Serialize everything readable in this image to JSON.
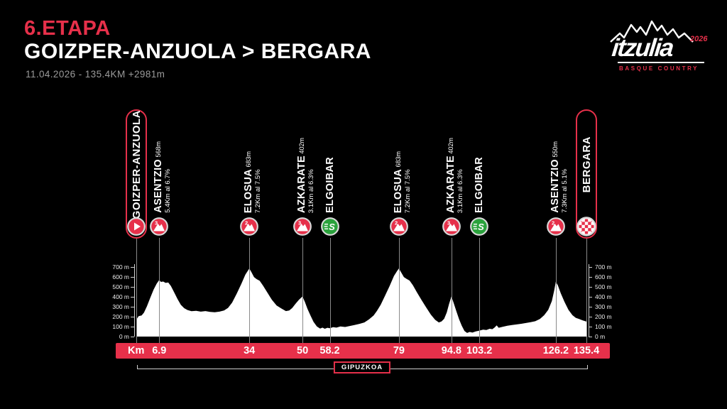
{
  "header": {
    "stage": "6.ETAPA",
    "route": "GOIZPER-ANZUOLA > BERGARA",
    "meta": "11.04.2026 - 135.4KM  +2981m"
  },
  "logo": {
    "wordmark": "itzulia",
    "year": "2026",
    "subtitle": "BASQUE COUNTRY"
  },
  "region_label": "GIPUZKOA",
  "colors": {
    "red": "#e6304a",
    "green": "#2aa23c",
    "white": "#ffffff",
    "bg": "#000000",
    "gray_text": "#9b9b9b",
    "grid": "#8a8a8a",
    "ring": "#d8d8d8"
  },
  "km_axis": {
    "label": "Km",
    "ticks": [
      "6.9",
      "34",
      "50",
      "58.2",
      "79",
      "94.8",
      "103.2",
      "126.2",
      "135.4"
    ]
  },
  "elevation_axis": {
    "ticks": [
      {
        "m": 700,
        "label": "700 m"
      },
      {
        "m": 600,
        "label": "600 m"
      },
      {
        "m": 500,
        "label": "500 m"
      },
      {
        "m": 400,
        "label": "400 m"
      },
      {
        "m": 300,
        "label": "300 m"
      },
      {
        "m": 200,
        "label": "200 m"
      },
      {
        "m": 100,
        "label": "100 m"
      },
      {
        "m": 0,
        "label": "0 m"
      }
    ]
  },
  "waypoints": [
    {
      "type": "start",
      "name": "GOIZPER-ANZUOLA",
      "km": 0
    },
    {
      "type": "climb",
      "cat": "3",
      "name": "ASENTZIO",
      "alt": "568m",
      "detail": "5.4Km al 6.7%",
      "km": 6.9
    },
    {
      "type": "climb",
      "cat": "2",
      "name": "ELOSUA",
      "alt": "683m",
      "detail": "7.2Km al 7.5%",
      "km": 34
    },
    {
      "type": "climb",
      "cat": "3",
      "name": "AZKARATE",
      "alt": "402m",
      "detail": "3.1Km al 6.3%",
      "km": 50
    },
    {
      "type": "sprint",
      "name": "ELGOIBAR",
      "km": 58.2
    },
    {
      "type": "climb",
      "cat": "2",
      "name": "ELOSUA",
      "alt": "683m",
      "detail": "7.2Km al 7.5%",
      "km": 79
    },
    {
      "type": "climb",
      "cat": "3",
      "name": "AZKARATE",
      "alt": "402m",
      "detail": "3.1Km al 6.3%",
      "km": 94.8
    },
    {
      "type": "sprint",
      "name": "ELGOIBAR",
      "km": 103.2
    },
    {
      "type": "climb",
      "cat": "2",
      "name": "ASENTZIO",
      "alt": "550m",
      "detail": "7.3Km al 5.1%",
      "km": 126.2
    },
    {
      "type": "finish",
      "name": "BERGARA",
      "km": 135.4
    }
  ],
  "chart_data": {
    "type": "area",
    "title": "Stage 6 elevation profile",
    "xlabel": "Km",
    "ylabel": "m",
    "xlim": [
      0,
      135.4
    ],
    "ylim": [
      0,
      700
    ],
    "x": [
      0,
      0.7,
      1.6,
      2.3,
      3.2,
      4.2,
      5.2,
      6.1,
      6.9,
      7.4,
      8.1,
      8.8,
      9.6,
      10.4,
      11.4,
      12.4,
      13.4,
      14.4,
      15.4,
      16.6,
      18,
      19.4,
      20.8,
      22.2,
      23.6,
      25,
      26.4,
      27.6,
      28.8,
      30.2,
      31.6,
      32.8,
      34,
      34.6,
      35.4,
      36.2,
      37.1,
      38.1,
      39.4,
      40.8,
      42.2,
      43.6,
      45,
      46,
      46.9,
      47.9,
      48.9,
      50,
      50.7,
      51.5,
      52.4,
      53.3,
      54.3,
      55.3,
      56,
      56.7,
      57.5,
      58.2,
      59.2,
      60.2,
      61.4,
      62.8,
      64.2,
      65.6,
      67,
      68.6,
      70,
      71.4,
      72.4,
      73.5,
      74.8,
      76.2,
      77.5,
      78.5,
      79,
      79.6,
      80.5,
      81.3,
      82.2,
      83.2,
      84.4,
      85.8,
      87.2,
      88.6,
      89.9,
      91,
      91.8,
      92.6,
      93.4,
      94.1,
      94.8,
      95.5,
      96.3,
      97.1,
      97.9,
      98.7,
      99.5,
      100.3,
      101.1,
      102.1,
      103.2,
      104.3,
      105.3,
      106.3,
      107.1,
      107.8,
      108.4,
      109,
      110.2,
      111.6,
      113,
      114.4,
      115.8,
      117.2,
      118.6,
      120,
      121.4,
      122.7,
      123.9,
      125,
      125.7,
      126.2,
      126.8,
      127.7,
      128.8,
      130,
      131.2,
      132.2,
      133.2,
      134.3,
      135.4
    ],
    "elevation": [
      170,
      205,
      212,
      240,
      305,
      390,
      470,
      530,
      568,
      548,
      552,
      538,
      542,
      508,
      442,
      375,
      318,
      285,
      266,
      254,
      258,
      250,
      256,
      248,
      244,
      250,
      262,
      288,
      340,
      430,
      530,
      622,
      683,
      648,
      596,
      576,
      560,
      512,
      442,
      368,
      312,
      282,
      256,
      262,
      286,
      330,
      368,
      402,
      348,
      278,
      210,
      148,
      102,
      80,
      90,
      78,
      88,
      84,
      94,
      90,
      102,
      96,
      106,
      116,
      126,
      142,
      172,
      212,
      258,
      318,
      408,
      508,
      608,
      660,
      683,
      648,
      596,
      578,
      562,
      514,
      444,
      366,
      292,
      220,
      168,
      142,
      152,
      178,
      242,
      330,
      402,
      332,
      252,
      172,
      108,
      56,
      36,
      46,
      40,
      52,
      60,
      70,
      66,
      78,
      74,
      92,
      112,
      88,
      98,
      108,
      116,
      122,
      128,
      136,
      144,
      154,
      176,
      214,
      268,
      356,
      462,
      550,
      514,
      434,
      348,
      268,
      214,
      188,
      176,
      162,
      150
    ]
  }
}
